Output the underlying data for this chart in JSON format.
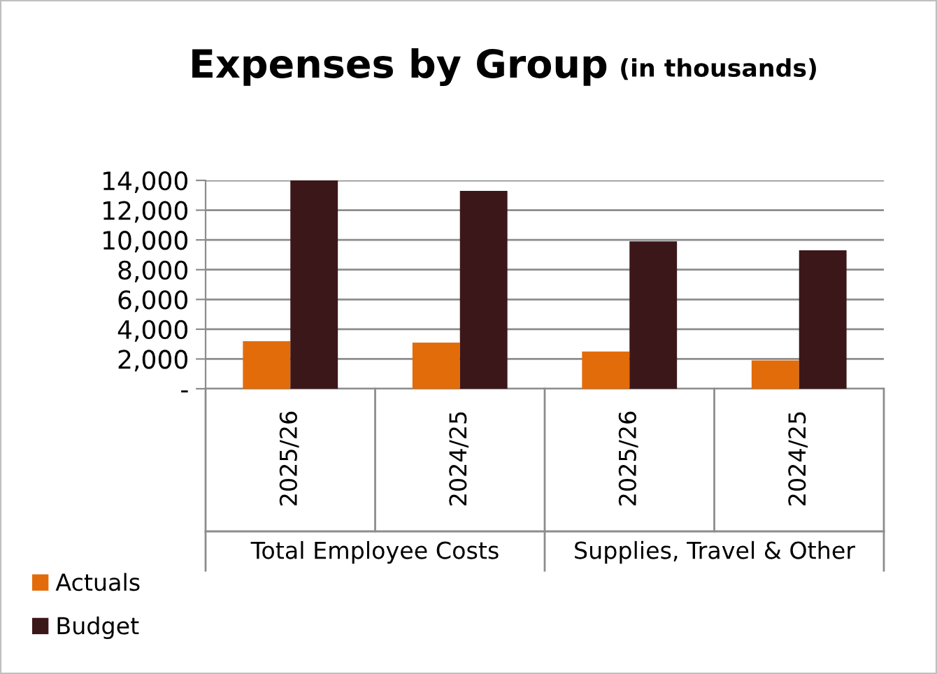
{
  "chart_data": {
    "type": "bar",
    "title": "Expenses by Group",
    "subtitle": "(in thousands)",
    "categories": [
      "2025/26",
      "2024/25",
      "2025/26",
      "2024/25"
    ],
    "annotations": [
      "Total Employee Costs",
      "Supplies, Travel & Other"
    ],
    "series": [
      {
        "name": "Actuals",
        "color": "#e36c0a",
        "values": [
          3200,
          3100,
          2500,
          1900
        ]
      },
      {
        "name": "Budget",
        "color": "#3c1719",
        "values": [
          14000,
          13300,
          9900,
          9300
        ]
      }
    ],
    "ylim": [
      0,
      14000
    ],
    "yticks": [
      {
        "value": 0,
        "label": "-"
      },
      {
        "value": 2000,
        "label": "2,000"
      },
      {
        "value": 4000,
        "label": "4,000"
      },
      {
        "value": 6000,
        "label": "6,000"
      },
      {
        "value": 8000,
        "label": "8,000"
      },
      {
        "value": 10000,
        "label": "10,000"
      },
      {
        "value": 12000,
        "label": "12,000"
      },
      {
        "value": 14000,
        "label": "14,000"
      }
    ],
    "grid": "y",
    "legend": "bottom left"
  }
}
